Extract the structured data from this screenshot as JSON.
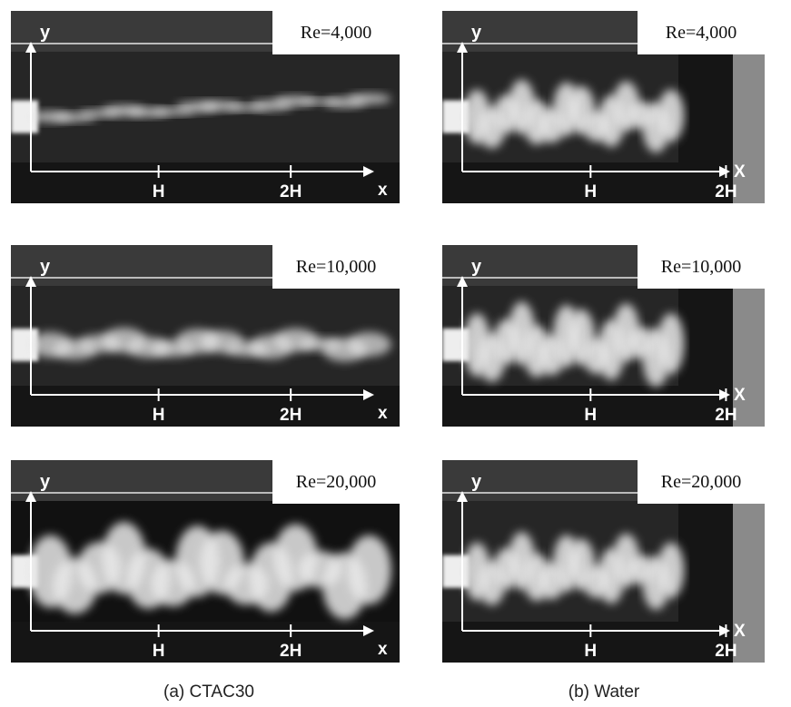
{
  "columns": [
    {
      "caption": "(a) CTAC30",
      "panels": [
        {
          "re": "Re=4,000",
          "y_label": "y",
          "x_label": "x",
          "ticks": [
            "H",
            "2H"
          ]
        },
        {
          "re": "Re=10,000",
          "y_label": "y",
          "x_label": "x",
          "ticks": [
            "H",
            "2H"
          ]
        },
        {
          "re": "Re=20,000",
          "y_label": "y",
          "x_label": "x",
          "ticks": [
            "H",
            "2H"
          ]
        }
      ]
    },
    {
      "caption": "(b) Water",
      "panels": [
        {
          "re": "Re=4,000",
          "y_label": "y",
          "x_label": "X",
          "ticks": [
            "H",
            "2H"
          ]
        },
        {
          "re": "Re=10,000",
          "y_label": "y",
          "x_label": "X",
          "ticks": [
            "H",
            "2H"
          ]
        },
        {
          "re": "Re=20,000",
          "y_label": "y",
          "x_label": "X",
          "ticks": [
            "H",
            "2H"
          ]
        }
      ]
    }
  ]
}
